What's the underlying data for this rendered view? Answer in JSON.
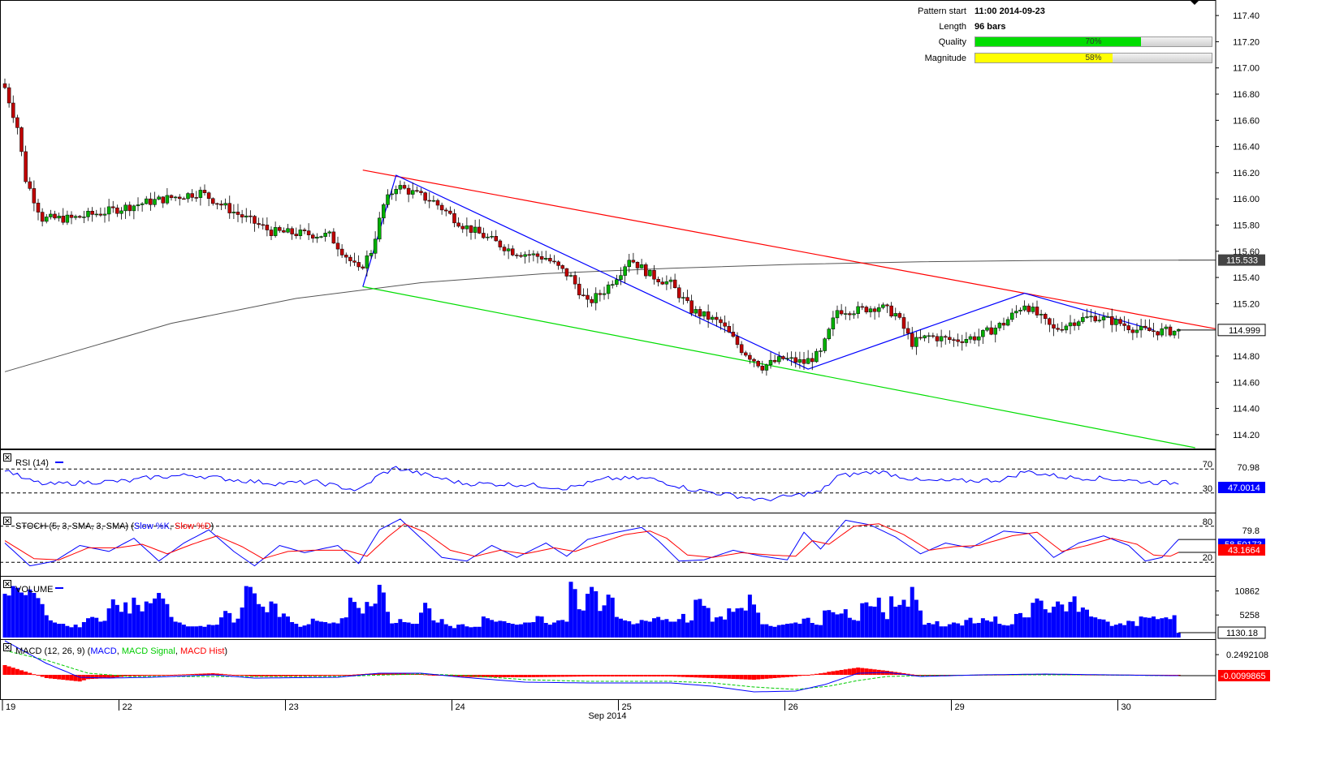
{
  "pattern_info": {
    "start_label": "Pattern start",
    "start_value": "11:00 2014-09-23",
    "length_label": "Length",
    "length_value": "96 bars",
    "quality_label": "Quality",
    "quality_value": 0.7,
    "quality_text": "70%",
    "magnitude_label": "Magnitude",
    "magnitude_value": 0.58,
    "magnitude_text": "58%"
  },
  "colors": {
    "bull": "#00b000",
    "bear": "#c00000",
    "upper_channel": "#ff0000",
    "lower_channel": "#00dd00",
    "zigzag": "#0000ff",
    "sma": "#555555",
    "rsi": "#0000ff",
    "stoch_k": "#0000ff",
    "stoch_d": "#ff0000",
    "volume": "#0000ff",
    "macd": "#0000ff",
    "macd_signal": "#00cc00",
    "macd_hist": "#ff0000",
    "quality_fill": "#00dd00",
    "magnitude_fill": "#ffff00"
  },
  "chart_data": {
    "type": "candlestick",
    "price_axis": {
      "ticks": [
        "117.40",
        "117.20",
        "117.00",
        "116.80",
        "116.60",
        "116.40",
        "116.20",
        "116.00",
        "115.80",
        "115.60",
        "115.40",
        "115.20",
        "114.80",
        "114.60",
        "114.40",
        "114.20"
      ],
      "range": [
        114.1,
        117.5
      ],
      "sma_label": "115.533",
      "current_label": "114.999"
    },
    "x_axis": {
      "day_labels": [
        "19",
        "22",
        "23",
        "24",
        "25",
        "26",
        "29",
        "30"
      ],
      "month_label": "Sep 2014"
    },
    "pattern": {
      "upper_line": [
        [
          86,
          116.22
        ],
        [
          294,
          114.99
        ]
      ],
      "lower_line": [
        [
          86,
          115.33
        ],
        [
          286,
          114.1
        ]
      ],
      "zigzag": [
        [
          86,
          115.33
        ],
        [
          94,
          116.18
        ],
        [
          193,
          114.7
        ],
        [
          245,
          115.28
        ],
        [
          276,
          115.0
        ]
      ]
    },
    "sma": [
      [
        0,
        114.68
      ],
      [
        40,
        115.05
      ],
      [
        70,
        115.24
      ],
      [
        100,
        115.36
      ],
      [
        130,
        115.43
      ],
      [
        160,
        115.47
      ],
      [
        190,
        115.5
      ],
      [
        220,
        115.52
      ],
      [
        250,
        115.53
      ],
      [
        294,
        115.533
      ]
    ],
    "close_anchors": [
      [
        0,
        116.85
      ],
      [
        3,
        116.55
      ],
      [
        5,
        116.15
      ],
      [
        9,
        115.85
      ],
      [
        16,
        115.85
      ],
      [
        24,
        115.9
      ],
      [
        35,
        115.98
      ],
      [
        47,
        116.05
      ],
      [
        55,
        115.9
      ],
      [
        64,
        115.75
      ],
      [
        78,
        115.72
      ],
      [
        85,
        115.45
      ],
      [
        88,
        115.6
      ],
      [
        91,
        115.95
      ],
      [
        94,
        116.1
      ],
      [
        103,
        115.98
      ],
      [
        110,
        115.8
      ],
      [
        122,
        115.6
      ],
      [
        130,
        115.55
      ],
      [
        136,
        115.4
      ],
      [
        140,
        115.2
      ],
      [
        144,
        115.3
      ],
      [
        148,
        115.45
      ],
      [
        150,
        115.55
      ],
      [
        155,
        115.42
      ],
      [
        160,
        115.35
      ],
      [
        165,
        115.15
      ],
      [
        172,
        115.05
      ],
      [
        177,
        114.85
      ],
      [
        182,
        114.72
      ],
      [
        187,
        114.78
      ],
      [
        192,
        114.75
      ],
      [
        196,
        114.82
      ],
      [
        200,
        115.15
      ],
      [
        205,
        115.15
      ],
      [
        210,
        115.18
      ],
      [
        214,
        115.12
      ],
      [
        218,
        114.9
      ],
      [
        222,
        114.95
      ],
      [
        228,
        114.92
      ],
      [
        234,
        114.95
      ],
      [
        240,
        115.05
      ],
      [
        245,
        115.2
      ],
      [
        252,
        115.0
      ],
      [
        258,
        115.08
      ],
      [
        262,
        115.1
      ],
      [
        268,
        115.05
      ],
      [
        272,
        115.0
      ],
      [
        276,
        114.99
      ],
      [
        279,
        114.99
      ]
    ],
    "rsi": {
      "label": "RSI (14)",
      "levels": [
        "70",
        "30"
      ],
      "axis_tick": "70.98",
      "current": "47.0014",
      "anchors": [
        [
          0,
          70
        ],
        [
          5,
          52
        ],
        [
          10,
          44
        ],
        [
          20,
          48
        ],
        [
          30,
          50
        ],
        [
          35,
          56
        ],
        [
          45,
          60
        ],
        [
          55,
          52
        ],
        [
          65,
          46
        ],
        [
          75,
          48
        ],
        [
          85,
          34
        ],
        [
          90,
          60
        ],
        [
          94,
          72
        ],
        [
          100,
          62
        ],
        [
          110,
          46
        ],
        [
          125,
          44
        ],
        [
          135,
          38
        ],
        [
          145,
          54
        ],
        [
          155,
          54
        ],
        [
          165,
          36
        ],
        [
          175,
          26
        ],
        [
          182,
          18
        ],
        [
          188,
          24
        ],
        [
          196,
          32
        ],
        [
          200,
          58
        ],
        [
          210,
          66
        ],
        [
          220,
          50
        ],
        [
          230,
          50
        ],
        [
          240,
          52
        ],
        [
          245,
          66
        ],
        [
          255,
          56
        ],
        [
          265,
          54
        ],
        [
          275,
          48
        ],
        [
          280,
          47
        ]
      ]
    },
    "stoch": {
      "label": "STOCH (5, 3, SMA, 3, SMA)",
      "k_name": "Slow %K",
      "d_name": "Slow %D",
      "levels": [
        "80",
        "20"
      ],
      "axis_tick": "79.8",
      "current_k": "58.50173",
      "current_d": "43.1664",
      "k_anchors": [
        [
          0,
          52
        ],
        [
          6,
          14
        ],
        [
          12,
          22
        ],
        [
          18,
          48
        ],
        [
          25,
          38
        ],
        [
          31,
          60
        ],
        [
          37,
          22
        ],
        [
          43,
          52
        ],
        [
          49,
          74
        ],
        [
          55,
          38
        ],
        [
          60,
          14
        ],
        [
          66,
          48
        ],
        [
          72,
          36
        ],
        [
          80,
          48
        ],
        [
          85,
          18
        ],
        [
          90,
          74
        ],
        [
          95,
          92
        ],
        [
          100,
          60
        ],
        [
          105,
          28
        ],
        [
          111,
          22
        ],
        [
          117,
          48
        ],
        [
          123,
          28
        ],
        [
          130,
          52
        ],
        [
          135,
          30
        ],
        [
          140,
          58
        ],
        [
          147,
          70
        ],
        [
          153,
          78
        ],
        [
          157,
          56
        ],
        [
          162,
          22
        ],
        [
          168,
          24
        ],
        [
          175,
          40
        ],
        [
          182,
          30
        ],
        [
          188,
          24
        ],
        [
          192,
          70
        ],
        [
          196,
          42
        ],
        [
          202,
          90
        ],
        [
          208,
          82
        ],
        [
          214,
          62
        ],
        [
          220,
          34
        ],
        [
          226,
          52
        ],
        [
          232,
          44
        ],
        [
          240,
          72
        ],
        [
          246,
          68
        ],
        [
          252,
          28
        ],
        [
          258,
          52
        ],
        [
          264,
          64
        ],
        [
          270,
          48
        ],
        [
          274,
          22
        ],
        [
          278,
          28
        ],
        [
          282,
          58
        ]
      ],
      "d_anchors": [
        [
          0,
          56
        ],
        [
          7,
          26
        ],
        [
          13,
          24
        ],
        [
          20,
          44
        ],
        [
          27,
          44
        ],
        [
          33,
          50
        ],
        [
          39,
          34
        ],
        [
          45,
          50
        ],
        [
          51,
          64
        ],
        [
          57,
          46
        ],
        [
          62,
          26
        ],
        [
          68,
          38
        ],
        [
          74,
          40
        ],
        [
          82,
          40
        ],
        [
          87,
          30
        ],
        [
          92,
          62
        ],
        [
          96,
          84
        ],
        [
          101,
          70
        ],
        [
          107,
          40
        ],
        [
          113,
          30
        ],
        [
          119,
          40
        ],
        [
          125,
          34
        ],
        [
          132,
          44
        ],
        [
          137,
          38
        ],
        [
          142,
          50
        ],
        [
          149,
          66
        ],
        [
          155,
          72
        ],
        [
          159,
          60
        ],
        [
          164,
          32
        ],
        [
          170,
          28
        ],
        [
          177,
          36
        ],
        [
          184,
          32
        ],
        [
          190,
          30
        ],
        [
          194,
          56
        ],
        [
          198,
          50
        ],
        [
          204,
          80
        ],
        [
          210,
          84
        ],
        [
          216,
          66
        ],
        [
          222,
          40
        ],
        [
          228,
          46
        ],
        [
          234,
          48
        ],
        [
          242,
          64
        ],
        [
          248,
          70
        ],
        [
          254,
          38
        ],
        [
          260,
          48
        ],
        [
          266,
          60
        ],
        [
          272,
          50
        ],
        [
          276,
          32
        ],
        [
          280,
          30
        ],
        [
          284,
          43
        ]
      ]
    },
    "volume": {
      "label": "VOLUME",
      "ticks": [
        "10862",
        "5258"
      ],
      "current": "1130.18",
      "values": [
        10200,
        9800,
        12000,
        11600,
        10500,
        9900,
        11200,
        10400,
        9200,
        7800,
        5200,
        4000,
        3500,
        3200,
        3200,
        2700,
        2400,
        3000,
        2400,
        3600,
        4500,
        4800,
        4600,
        3700,
        3900,
        6800,
        8900,
        7600,
        6000,
        8200,
        5600,
        9300,
        7600,
        6100,
        8400,
        8000,
        9100,
        10400,
        9100,
        7800,
        4800,
        3700,
        3500,
        3000,
        2600,
        2600,
        2600,
        2700,
        2500,
        3000,
        2900,
        3000,
        4700,
        6200,
        5700,
        3500,
        4400,
        7000,
        12000,
        11800,
        10300,
        7800,
        7200,
        5900,
        8400,
        7900,
        4800,
        5600,
        4900,
        3600,
        3200,
        2500,
        2800,
        3100,
        4400,
        3900,
        3700,
        3600,
        3300,
        3500,
        3300,
        4500,
        4700,
        9300,
        8300,
        6900,
        5600,
        8300,
        7300,
        7900,
        12300,
        10500,
        6000,
        3300,
        3400,
        4300,
        3600,
        3500,
        3200,
        3200,
        5800,
        8100,
        6800,
        4000,
        3500,
        4300,
        3100,
        2700,
        2200,
        3000,
        3100,
        2600,
        2400,
        2500,
        2500,
        4900,
        4500,
        4100,
        3700,
        3900,
        3800,
        3400,
        3200,
        3000,
        3100,
        3500,
        3500,
        3600,
        5000,
        4900,
        3400,
        3000,
        3500,
        4000,
        4100,
        3700,
        13000,
        11300,
        6600,
        6300,
        10200,
        11800,
        10800,
        6200,
        7500,
        10000,
        9300,
        4800,
        4400,
        4000,
        3800,
        3100,
        3300,
        4100,
        3900,
        3700,
        4500,
        4800,
        4100,
        4300,
        3700,
        3700,
        4300,
        5500,
        3500,
        4000,
        8800,
        9000,
        7400,
        6900,
        3700,
        4700,
        4900,
        4200,
        6800,
        6000,
        6800,
        6900,
        6300,
        10000,
        7700,
        5800,
        3100,
        3100,
        2700,
        2500,
        2900,
        3000,
        3200,
        3300,
        3500,
        3200,
        4400,
        4600,
        3400,
        3000,
        2900,
        6300,
        6400,
        5900,
        5400,
        5600,
        6600,
        4600,
        4100,
        3900,
        8000,
        8200,
        7300,
        7200,
        9300,
        5900,
        4300,
        9600,
        7200,
        7600,
        8800,
        7200,
        11800,
        8800,
        6300,
        3000,
        3400,
        3100,
        3800,
        2600,
        2600,
        3100,
        3500,
        3300,
        2800,
        4100,
        4600,
        3300,
        3400,
        4500,
        4000,
        3700,
        4900,
        3200,
        2900,
        2800,
        3100,
        5500,
        5700,
        4700,
        4700,
        8100,
        9100,
        8600,
        6600,
        5800,
        7200,
        8400,
        7700,
        6100,
        8300,
        9600,
        6000,
        7000,
        6500,
        4900,
        4700,
        4300,
        4200,
        3700,
        2700,
        3000,
        3300,
        2900,
        3900,
        3800,
        2700,
        4900,
        4700,
        4600,
        4900,
        4300,
        4500,
        4700,
        4300,
        5200,
        1100
      ]
    },
    "macd": {
      "label": "MACD (12, 26, 9)",
      "line_name": "MACD",
      "signal_name": "MACD Signal",
      "hist_name": "MACD Hist",
      "ticks": [
        "0.2492108"
      ],
      "current": "-0.0099865",
      "line_anchors": [
        [
          0,
          0.42
        ],
        [
          10,
          0.14
        ],
        [
          18,
          -0.03
        ],
        [
          25,
          -0.04
        ],
        [
          35,
          -0.03
        ],
        [
          50,
          0.0
        ],
        [
          60,
          -0.04
        ],
        [
          80,
          -0.03
        ],
        [
          90,
          0.02
        ],
        [
          100,
          0.02
        ],
        [
          110,
          -0.03
        ],
        [
          125,
          -0.09
        ],
        [
          140,
          -0.1
        ],
        [
          160,
          -0.1
        ],
        [
          170,
          -0.14
        ],
        [
          180,
          -0.21
        ],
        [
          190,
          -0.2
        ],
        [
          197,
          -0.12
        ],
        [
          205,
          0.02
        ],
        [
          212,
          0.03
        ],
        [
          220,
          -0.02
        ],
        [
          235,
          0.0
        ],
        [
          250,
          0.01
        ],
        [
          265,
          0.0
        ],
        [
          280,
          -0.01
        ]
      ],
      "signal_anchors": [
        [
          0,
          0.3
        ],
        [
          10,
          0.18
        ],
        [
          20,
          0.02
        ],
        [
          30,
          -0.02
        ],
        [
          45,
          -0.02
        ],
        [
          60,
          -0.02
        ],
        [
          80,
          -0.02
        ],
        [
          92,
          0.0
        ],
        [
          100,
          0.01
        ],
        [
          112,
          -0.01
        ],
        [
          125,
          -0.06
        ],
        [
          140,
          -0.08
        ],
        [
          160,
          -0.08
        ],
        [
          170,
          -0.1
        ],
        [
          180,
          -0.15
        ],
        [
          190,
          -0.18
        ],
        [
          198,
          -0.14
        ],
        [
          205,
          -0.07
        ],
        [
          212,
          -0.02
        ],
        [
          220,
          -0.01
        ],
        [
          240,
          0.0
        ],
        [
          260,
          0.0
        ],
        [
          280,
          -0.01
        ]
      ]
    }
  }
}
